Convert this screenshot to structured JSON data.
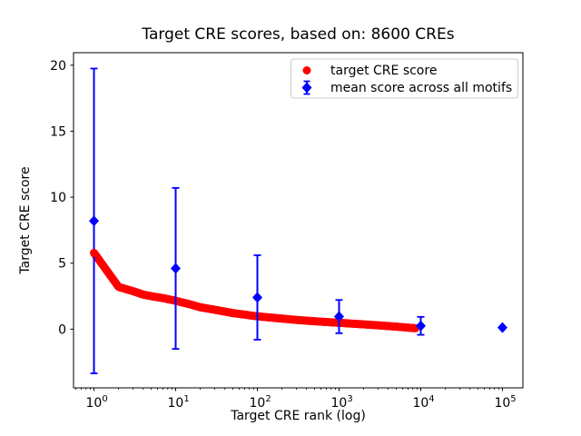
{
  "title": "Target CRE scores, based on: 8600 CREs",
  "colors": {
    "target_score": "#ff0000",
    "mean_score": "#0000ff",
    "axis": "#000000",
    "legend_border": "#cccccc",
    "background": "#ffffff"
  },
  "chart_data": {
    "type": "scatter",
    "title": "Target CRE scores, based on: 8600 CREs",
    "xlabel": "Target CRE rank (log)",
    "ylabel": "Target CRE score",
    "x_scale": "log",
    "xlim": [
      0.562,
      178000
    ],
    "ylim": [
      -4.45,
      20.95
    ],
    "x_tick_base": "10",
    "x_tick_exponents": [
      0,
      1,
      2,
      3,
      4,
      5
    ],
    "y_ticks": [
      0,
      5,
      10,
      15,
      20
    ],
    "grid": false,
    "legend_position": "upper right",
    "series": [
      {
        "name": "target CRE score",
        "marker": "circle",
        "color": "#ff0000",
        "n_points": 8600,
        "note": "8600 red dots, one per rank; values read from plot at anchor ranks, log-interpolated between",
        "anchors_rank": [
          1,
          2,
          3,
          4,
          5,
          7,
          10,
          15,
          20,
          30,
          50,
          100,
          200,
          300,
          500,
          1000,
          2000,
          3000,
          5000,
          8600
        ],
        "anchors_score": [
          5.78,
          3.2,
          2.88,
          2.62,
          2.5,
          2.35,
          2.15,
          1.88,
          1.66,
          1.47,
          1.22,
          0.97,
          0.8,
          0.7,
          0.6,
          0.48,
          0.36,
          0.29,
          0.19,
          0.07
        ]
      },
      {
        "name": "mean score across all motifs",
        "marker": "diamond",
        "color": "#0000ff",
        "x": [
          1,
          10,
          100,
          1000,
          10000,
          100000
        ],
        "y": [
          8.2,
          4.6,
          2.4,
          0.95,
          0.25,
          0.12
        ],
        "yerr": [
          11.55,
          6.1,
          3.2,
          1.26,
          0.68,
          0.05
        ]
      }
    ]
  }
}
